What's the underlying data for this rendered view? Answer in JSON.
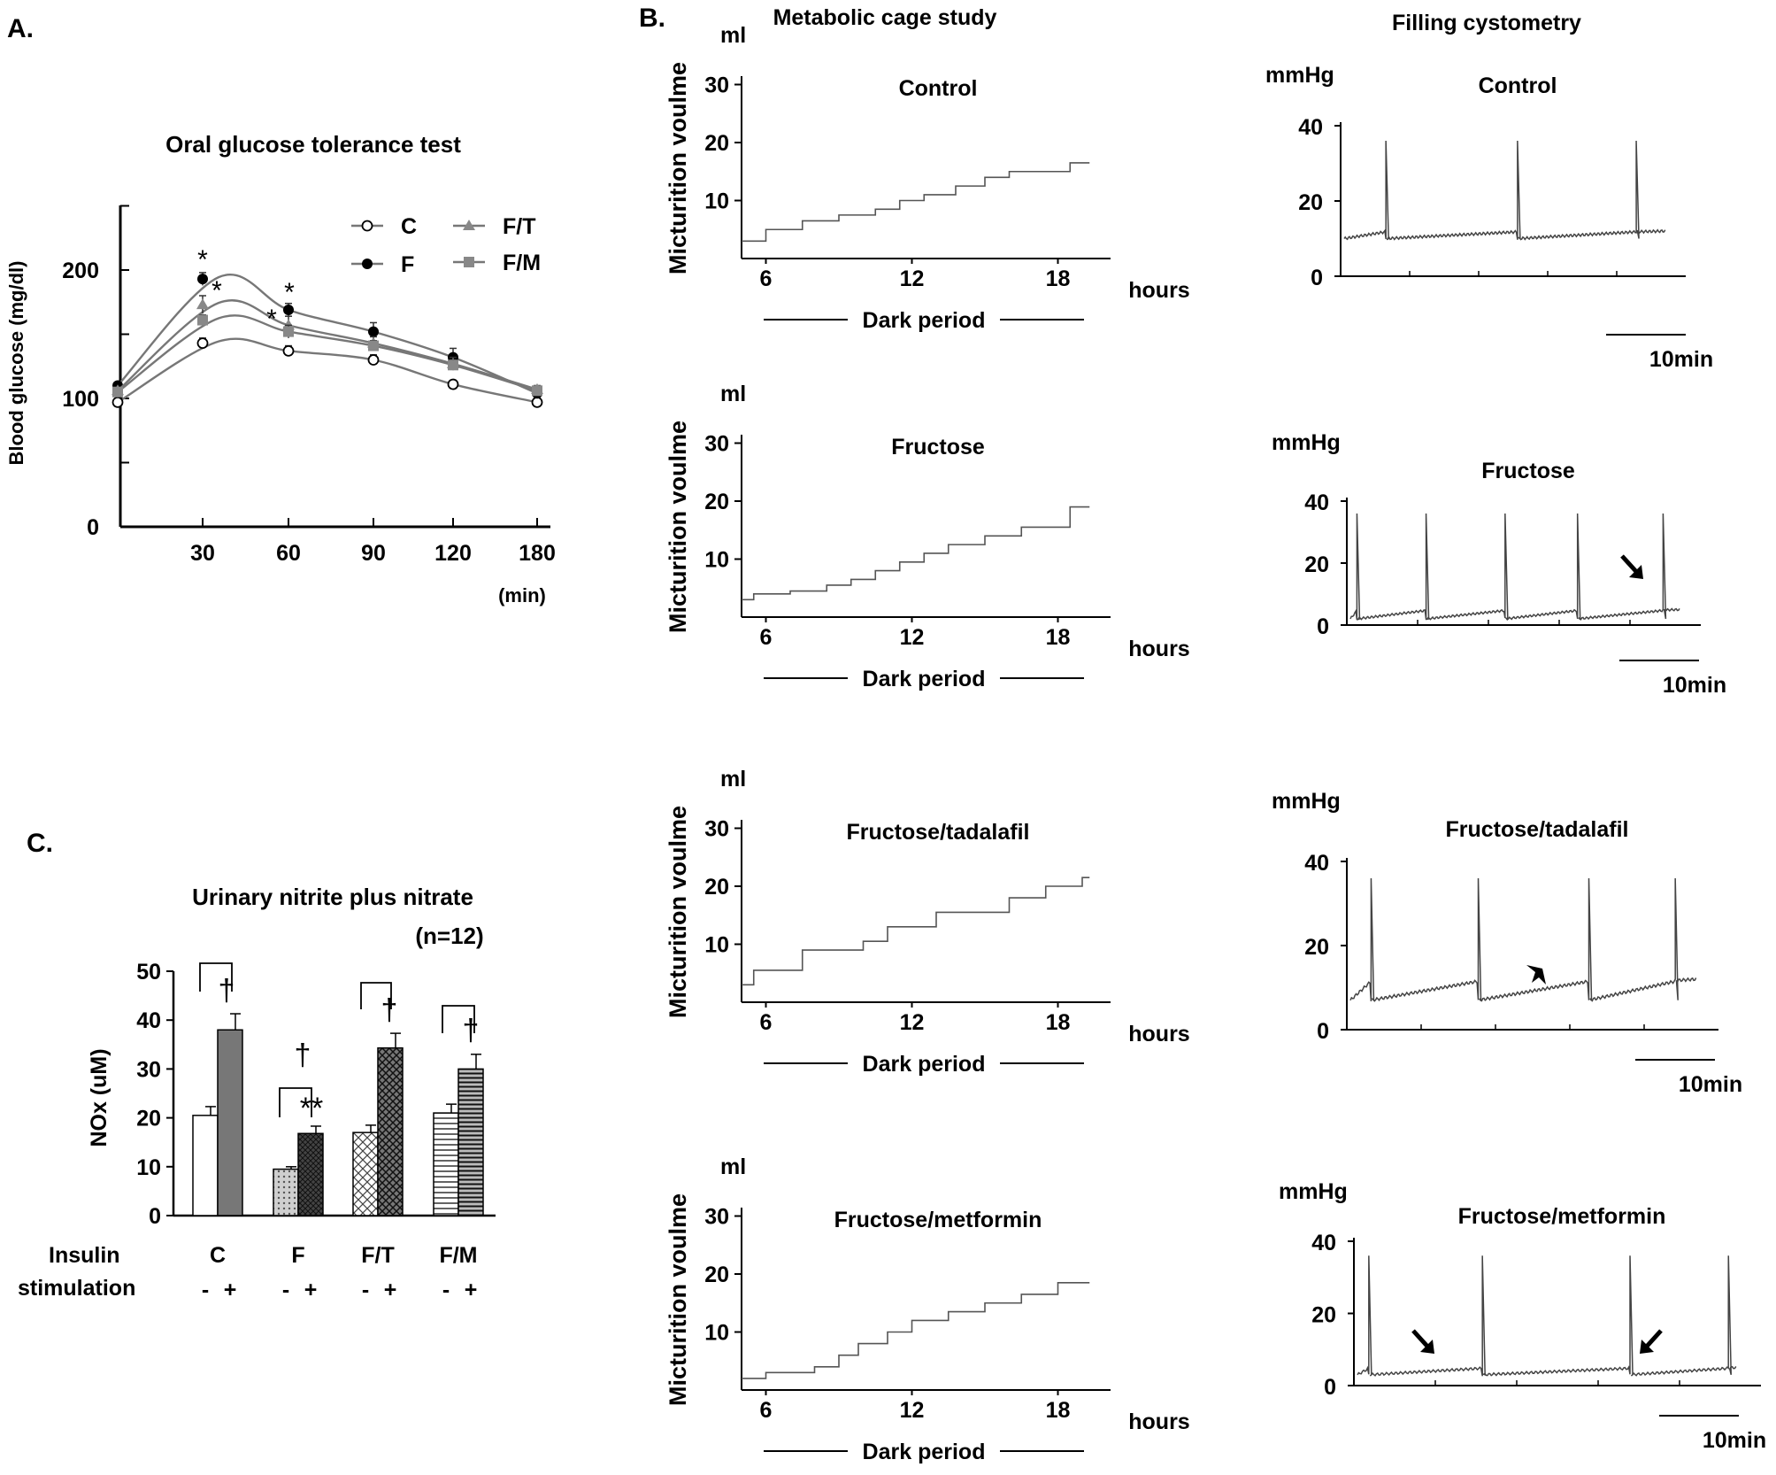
{
  "figure_labels": {
    "a": "A.",
    "b": "B.",
    "c": "C."
  },
  "chart_data": [
    {
      "id": "A",
      "type": "line",
      "title": "Oral glucose tolerance test",
      "xlabel": "(min)",
      "ylabel": "Blood glucose (mg/dl)",
      "x": [
        0,
        30,
        60,
        90,
        120,
        180
      ],
      "x_tick_labels": [
        "30",
        "60",
        "90",
        "120",
        "180"
      ],
      "y_ticks": [
        "0",
        "100",
        "200"
      ],
      "ylim": [
        0,
        250
      ],
      "series": [
        {
          "name": "C",
          "marker": "open-circle",
          "color": "#000000",
          "values": [
            97,
            143,
            137,
            130,
            111,
            97
          ],
          "errors": [
            0,
            4,
            4,
            4,
            3,
            2
          ]
        },
        {
          "name": "F",
          "marker": "filled-circle",
          "color": "#000000",
          "values": [
            110,
            193,
            169,
            152,
            132,
            104
          ],
          "errors": [
            0,
            5,
            5,
            7,
            7,
            4
          ]
        },
        {
          "name": "F/T",
          "marker": "triangle",
          "color": "#888888",
          "values": [
            106,
            173,
            157,
            143,
            127,
            107
          ],
          "errors": [
            0,
            7,
            7,
            5,
            5,
            3
          ]
        },
        {
          "name": "F/M",
          "marker": "square",
          "color": "#888888",
          "values": [
            105,
            161,
            152,
            141,
            126,
            106
          ],
          "errors": [
            0,
            4,
            5,
            4,
            4,
            3
          ]
        }
      ],
      "annotations": [
        "*",
        "*",
        "*",
        "*"
      ]
    },
    {
      "id": "C",
      "type": "bar",
      "title": "Urinary nitrite plus nitrate",
      "note": "(n=12)",
      "ylabel": "NOx (uM)",
      "y_ticks": [
        "0",
        "10",
        "20",
        "30",
        "40",
        "50"
      ],
      "ylim": [
        0,
        50
      ],
      "categories": [
        "C",
        "F",
        "F/T",
        "F/M"
      ],
      "row_label_1": "Insulin",
      "row_label_2": "stimulation",
      "conditions": [
        "-",
        "+"
      ],
      "series": [
        {
          "name": "-",
          "values": [
            20.5,
            9.5,
            17,
            21
          ],
          "errors": [
            1.8,
            0.5,
            1.5,
            1.8
          ]
        },
        {
          "name": "+",
          "values": [
            38,
            16.8,
            34.3,
            30
          ],
          "errors": [
            3.3,
            1.5,
            3,
            3
          ]
        }
      ],
      "significance": [
        "†",
        "**",
        "†",
        "†",
        "†"
      ]
    },
    {
      "id": "B-metabolic",
      "type": "line",
      "title": "Metabolic cage study",
      "unit": "ml",
      "ylabel": "Micturition voulme",
      "xlabel": "hours",
      "period": "Dark period",
      "x_ticks": [
        "6",
        "12",
        "18"
      ],
      "y_ticks": [
        "10",
        "20",
        "30"
      ],
      "panels": [
        {
          "label": "Control",
          "steps": [
            [
              5,
              3
            ],
            [
              6,
              5
            ],
            [
              7.5,
              6.5
            ],
            [
              9,
              7.5
            ],
            [
              10.5,
              8.5
            ],
            [
              11.5,
              10
            ],
            [
              12.5,
              11
            ],
            [
              13.8,
              12.5
            ],
            [
              15,
              14
            ],
            [
              16,
              15
            ],
            [
              18.5,
              16.5
            ]
          ]
        },
        {
          "label": "Fructose",
          "steps": [
            [
              5,
              3
            ],
            [
              5.5,
              4
            ],
            [
              7,
              4.5
            ],
            [
              8.5,
              5.5
            ],
            [
              9.5,
              6.5
            ],
            [
              10.5,
              8
            ],
            [
              11.5,
              9.5
            ],
            [
              12.5,
              11
            ],
            [
              13.5,
              12.5
            ],
            [
              15,
              14
            ],
            [
              16.5,
              15.5
            ],
            [
              18.5,
              19
            ]
          ]
        },
        {
          "label": "Fructose/tadalafil",
          "steps": [
            [
              5,
              3
            ],
            [
              5.5,
              5.5
            ],
            [
              7.5,
              9
            ],
            [
              10,
              10.5
            ],
            [
              11,
              13
            ],
            [
              13,
              15.5
            ],
            [
              16,
              18
            ],
            [
              17.5,
              20
            ],
            [
              19,
              21.5
            ]
          ]
        },
        {
          "label": "Fructose/metformin",
          "steps": [
            [
              5,
              2
            ],
            [
              6,
              3
            ],
            [
              8,
              4
            ],
            [
              9,
              6
            ],
            [
              9.8,
              8
            ],
            [
              11,
              10
            ],
            [
              12,
              12
            ],
            [
              13.5,
              13.5
            ],
            [
              15,
              15
            ],
            [
              16.5,
              16.5
            ],
            [
              18,
              18.5
            ]
          ]
        }
      ]
    },
    {
      "id": "B-cystometry",
      "type": "line",
      "title": "Filling cystometry",
      "unit": "mmHg",
      "y_ticks": [
        "0",
        "20",
        "40"
      ],
      "scale_bar": "10min",
      "panels": [
        {
          "label": "Control",
          "spike_times": [
            0.13,
            0.54,
            0.91
          ],
          "baseline": [
            10,
            12
          ]
        },
        {
          "label": "Fructose",
          "spike_times": [
            0.02,
            0.23,
            0.47,
            0.69,
            0.95
          ],
          "baseline": [
            2,
            5
          ],
          "arrows": 1
        },
        {
          "label": "Fructose/tadalafil",
          "spike_times": [
            0.06,
            0.37,
            0.69,
            0.94
          ],
          "baseline": [
            7,
            12
          ],
          "arrows": 1
        },
        {
          "label": "Fructose/metformin",
          "spike_times": [
            0.03,
            0.33,
            0.72,
            0.98
          ],
          "baseline": [
            3,
            5
          ],
          "arrows": 2
        }
      ]
    }
  ]
}
